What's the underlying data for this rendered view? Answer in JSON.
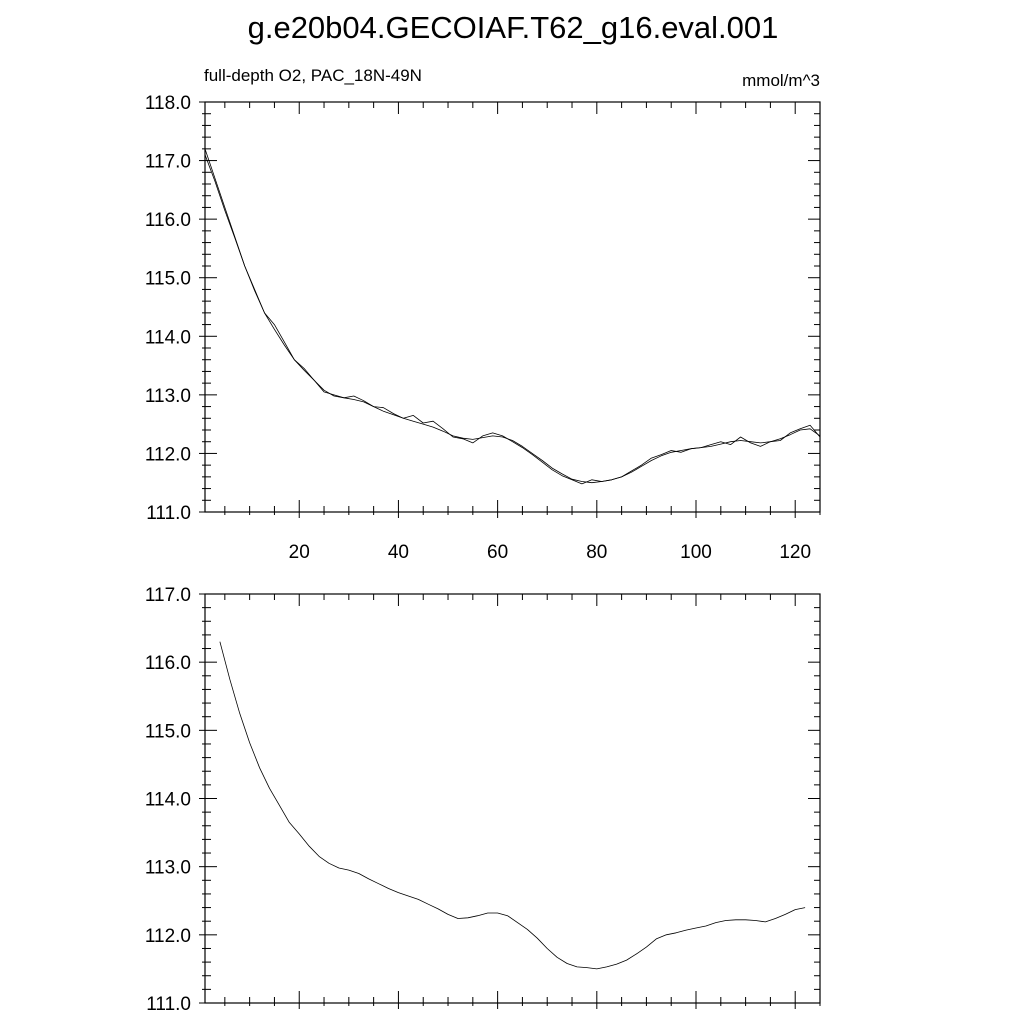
{
  "figure": {
    "title": "g.e20b04.GECOIAF.T62_g16.eval.001"
  },
  "chart_data": [
    {
      "type": "line",
      "left_label": "full-depth O2, PAC_18N-49N",
      "right_label": "mmol/m^3",
      "xlim": [
        1,
        125
      ],
      "ylim": [
        111.0,
        118.0
      ],
      "x_ticks": [
        20,
        40,
        60,
        80,
        100,
        120
      ],
      "x_tick_labels": [
        "20",
        "40",
        "60",
        "80",
        "100",
        "120"
      ],
      "y_ticks": [
        111.0,
        112.0,
        113.0,
        114.0,
        115.0,
        116.0,
        117.0,
        118.0
      ],
      "y_tick_labels": [
        "111.0",
        "112.0",
        "113.0",
        "114.0",
        "115.0",
        "116.0",
        "117.0",
        "118.0"
      ],
      "series": [
        {
          "x": [
            1,
            3,
            5,
            7,
            9,
            11,
            13,
            15,
            17,
            19,
            21,
            23,
            25,
            27,
            29,
            31,
            33,
            35,
            37,
            39,
            41,
            43,
            45,
            47,
            49,
            51,
            53,
            55,
            57,
            59,
            61,
            63,
            65,
            67,
            69,
            71,
            73,
            75,
            77,
            79,
            81,
            83,
            85,
            87,
            89,
            91,
            93,
            95,
            97,
            99,
            101,
            103,
            105,
            107,
            109,
            111,
            113,
            115,
            117,
            119,
            121,
            123,
            125
          ],
          "values": [
            117.2,
            116.7,
            116.2,
            115.7,
            115.2,
            114.8,
            114.4,
            114.2,
            113.9,
            113.6,
            113.45,
            113.25,
            113.05,
            113.0,
            112.95,
            112.98,
            112.9,
            112.8,
            112.78,
            112.68,
            112.6,
            112.65,
            112.52,
            112.55,
            112.42,
            112.28,
            112.25,
            112.18,
            112.3,
            112.35,
            112.3,
            112.2,
            112.1,
            111.98,
            111.85,
            111.72,
            111.62,
            111.55,
            111.48,
            111.55,
            111.52,
            111.55,
            111.6,
            111.7,
            111.8,
            111.92,
            111.98,
            112.05,
            112.02,
            112.08,
            112.1,
            112.15,
            112.2,
            112.15,
            112.28,
            112.18,
            112.12,
            112.2,
            112.22,
            112.35,
            112.42,
            112.48,
            112.28
          ]
        },
        {
          "x": [
            1,
            3,
            5,
            7,
            9,
            11,
            13,
            15,
            17,
            19,
            21,
            23,
            25,
            27,
            29,
            31,
            33,
            35,
            37,
            39,
            41,
            43,
            45,
            47,
            49,
            51,
            53,
            55,
            57,
            59,
            61,
            63,
            65,
            67,
            69,
            71,
            73,
            75,
            77,
            79,
            81,
            83,
            85,
            87,
            89,
            91,
            93,
            95,
            97,
            99,
            101,
            103,
            105,
            107,
            109,
            111,
            113,
            115,
            117,
            119,
            121,
            123,
            125
          ],
          "values": [
            117.1,
            116.65,
            116.15,
            115.68,
            115.2,
            114.78,
            114.4,
            114.12,
            113.85,
            113.6,
            113.42,
            113.25,
            113.08,
            112.98,
            112.95,
            112.92,
            112.88,
            112.8,
            112.72,
            112.66,
            112.6,
            112.55,
            112.5,
            112.45,
            112.38,
            112.3,
            112.26,
            112.24,
            112.27,
            112.3,
            112.28,
            112.22,
            112.12,
            112.0,
            111.88,
            111.75,
            111.65,
            111.56,
            111.52,
            111.5,
            111.52,
            111.55,
            111.6,
            111.68,
            111.78,
            111.88,
            111.96,
            112.02,
            112.05,
            112.08,
            112.1,
            112.12,
            112.16,
            112.2,
            112.22,
            112.2,
            112.18,
            112.2,
            112.25,
            112.32,
            112.4,
            112.42,
            112.3
          ]
        }
      ]
    },
    {
      "type": "line",
      "xlim": [
        1,
        125
      ],
      "ylim": [
        111.0,
        117.0
      ],
      "x_ticks": [
        20,
        40,
        60,
        80,
        100,
        120
      ],
      "x_tick_labels": [],
      "y_ticks": [
        111.0,
        112.0,
        113.0,
        114.0,
        115.0,
        116.0,
        117.0
      ],
      "y_tick_labels": [
        "111.0",
        "112.0",
        "113.0",
        "114.0",
        "115.0",
        "116.0",
        "117.0"
      ],
      "series": [
        {
          "x": [
            4,
            6,
            8,
            10,
            12,
            14,
            16,
            18,
            20,
            22,
            24,
            26,
            28,
            30,
            32,
            34,
            36,
            38,
            40,
            42,
            44,
            46,
            48,
            50,
            52,
            54,
            56,
            58,
            60,
            62,
            64,
            66,
            68,
            70,
            72,
            74,
            76,
            78,
            80,
            82,
            84,
            86,
            88,
            90,
            92,
            94,
            96,
            98,
            100,
            102,
            104,
            106,
            108,
            110,
            112,
            114,
            116,
            118,
            120,
            122
          ],
          "values": [
            116.3,
            115.75,
            115.25,
            114.82,
            114.45,
            114.15,
            113.9,
            113.65,
            113.48,
            113.3,
            113.15,
            113.05,
            112.98,
            112.95,
            112.9,
            112.82,
            112.75,
            112.68,
            112.62,
            112.57,
            112.52,
            112.45,
            112.38,
            112.3,
            112.24,
            112.25,
            112.28,
            112.32,
            112.32,
            112.28,
            112.18,
            112.08,
            111.95,
            111.8,
            111.67,
            111.58,
            111.53,
            111.52,
            111.5,
            111.53,
            111.57,
            111.63,
            111.72,
            111.82,
            111.94,
            112.0,
            112.03,
            112.07,
            112.1,
            112.13,
            112.18,
            112.21,
            112.22,
            112.22,
            112.21,
            112.19,
            112.24,
            112.3,
            112.37,
            112.4
          ]
        }
      ]
    }
  ]
}
